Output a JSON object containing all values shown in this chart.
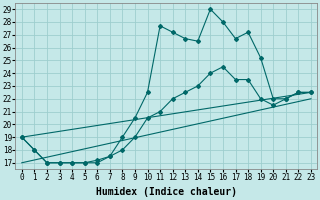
{
  "xlabel": "Humidex (Indice chaleur)",
  "ylabel": "",
  "xlim": [
    -0.5,
    23.5
  ],
  "ylim": [
    16.5,
    29.5
  ],
  "xticks": [
    0,
    1,
    2,
    3,
    4,
    5,
    6,
    7,
    8,
    9,
    10,
    11,
    12,
    13,
    14,
    15,
    16,
    17,
    18,
    19,
    20,
    21,
    22,
    23
  ],
  "yticks": [
    17,
    18,
    19,
    20,
    21,
    22,
    23,
    24,
    25,
    26,
    27,
    28,
    29
  ],
  "bg_color": "#c5e8e8",
  "line_color": "#006868",
  "grid_color": "#9ecece",
  "line1_x": [
    0,
    1,
    2,
    3,
    4,
    5,
    6,
    7,
    8,
    9,
    10,
    11,
    12,
    13,
    14,
    15,
    16,
    17,
    18,
    19,
    20,
    21,
    22,
    23
  ],
  "line1_y": [
    19,
    18,
    17,
    17,
    17,
    17,
    17,
    17.5,
    19.0,
    20.5,
    22.5,
    27.7,
    27.2,
    26.7,
    26.5,
    29.0,
    28.0,
    26.7,
    27.2,
    25.2,
    22.0,
    22.0,
    22.5,
    22.5
  ],
  "line2_x": [
    0,
    1,
    2,
    3,
    4,
    5,
    6,
    7,
    8,
    9,
    10,
    11,
    12,
    13,
    14,
    15,
    16,
    17,
    18,
    19,
    20,
    21,
    22,
    23
  ],
  "line2_y": [
    19,
    18,
    17,
    17,
    17,
    17,
    17.2,
    17.5,
    18.0,
    19.0,
    20.5,
    21.0,
    22.0,
    22.5,
    23.0,
    24.0,
    24.5,
    23.5,
    23.5,
    22.0,
    21.5,
    22.0,
    22.5,
    22.5
  ],
  "line3_x": [
    0,
    23
  ],
  "line3_y": [
    19,
    22.5
  ],
  "line4_x": [
    0,
    23
  ],
  "line4_y": [
    17,
    22.0
  ],
  "fontsize_label": 7,
  "fontsize_tick": 5.5
}
